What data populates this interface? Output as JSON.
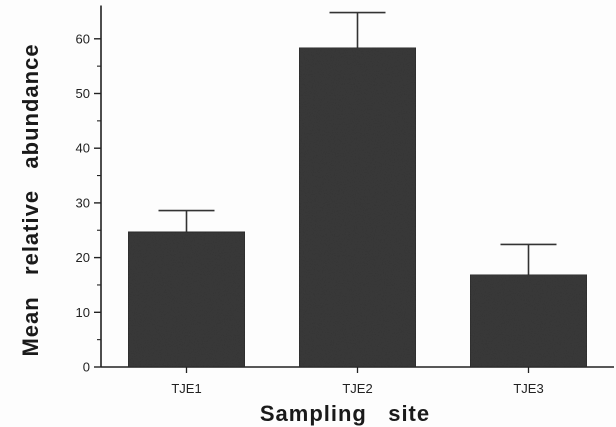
{
  "chart_data": {
    "type": "bar",
    "categories": [
      "TJE1",
      "TJE2",
      "TJE3"
    ],
    "values": [
      24.7,
      58.4,
      16.9
    ],
    "errors": [
      3.9,
      6.4,
      5.5
    ],
    "title": "",
    "xlabel": "Sampling   site",
    "ylabel": "Mean   relative   abundance",
    "ylim": [
      0,
      65
    ],
    "yticks": [
      0,
      10,
      20,
      30,
      40,
      50,
      60
    ],
    "grid": false,
    "legend": "none",
    "bar_color": "#3a3a3a",
    "axis_color": "#222222"
  }
}
